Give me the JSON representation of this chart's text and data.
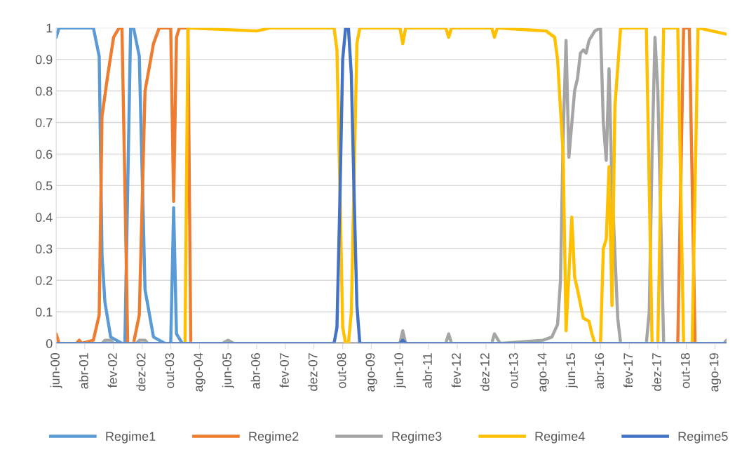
{
  "chart_data": {
    "type": "line",
    "xlim": [
      "2000-06",
      "2019-12"
    ],
    "ylim": [
      0,
      1
    ],
    "yticks": [
      {
        "value": 0,
        "label": "0"
      },
      {
        "value": 0.1,
        "label": "0.1"
      },
      {
        "value": 0.2,
        "label": "0.2"
      },
      {
        "value": 0.3,
        "label": "0.3"
      },
      {
        "value": 0.4,
        "label": "0.4"
      },
      {
        "value": 0.5,
        "label": "0.5"
      },
      {
        "value": 0.6,
        "label": "0.6"
      },
      {
        "value": 0.7,
        "label": "0.7"
      },
      {
        "value": 0.8,
        "label": "0.8"
      },
      {
        "value": 0.9,
        "label": "0.9"
      },
      {
        "value": 1,
        "label": "1"
      }
    ],
    "xticks": [
      {
        "value": "2000-06",
        "label": "jun-00"
      },
      {
        "value": "2001-04",
        "label": "abr-01"
      },
      {
        "value": "2002-02",
        "label": "fev-02"
      },
      {
        "value": "2002-12",
        "label": "dez-02"
      },
      {
        "value": "2003-10",
        "label": "out-03"
      },
      {
        "value": "2004-08",
        "label": "ago-04"
      },
      {
        "value": "2005-06",
        "label": "jun-05"
      },
      {
        "value": "2006-04",
        "label": "abr-06"
      },
      {
        "value": "2007-02",
        "label": "fev-07"
      },
      {
        "value": "2007-12",
        "label": "dez-07"
      },
      {
        "value": "2008-10",
        "label": "out-08"
      },
      {
        "value": "2009-08",
        "label": "ago-09"
      },
      {
        "value": "2010-06",
        "label": "jun-10"
      },
      {
        "value": "2011-04",
        "label": "abr-11"
      },
      {
        "value": "2012-02",
        "label": "fev-12"
      },
      {
        "value": "2012-12",
        "label": "dez-12"
      },
      {
        "value": "2013-10",
        "label": "out-13"
      },
      {
        "value": "2014-08",
        "label": "ago-14"
      },
      {
        "value": "2015-06",
        "label": "jun-15"
      },
      {
        "value": "2016-04",
        "label": "abr-16"
      },
      {
        "value": "2017-02",
        "label": "fev-17"
      },
      {
        "value": "2017-12",
        "label": "dez-17"
      },
      {
        "value": "2018-10",
        "label": "out-18"
      },
      {
        "value": "2019-08",
        "label": "ago-19"
      }
    ],
    "grid": "y",
    "legend": "bottom",
    "marker": "none",
    "line_style": "solid",
    "series": [
      {
        "name": "Regime1",
        "color": "#5b9bd5",
        "x": [
          "2000-06",
          "2000-07",
          "2001-07",
          "2001-09",
          "2001-10",
          "2001-11",
          "2002-01",
          "2002-05",
          "2002-06",
          "2002-08",
          "2002-09",
          "2002-11",
          "2003-01",
          "2003-04",
          "2003-08",
          "2003-10",
          "2003-11",
          "2003-12",
          "2004-02",
          "2019-12"
        ],
        "values": [
          0.97,
          1,
          1,
          0.91,
          0.28,
          0.13,
          0.02,
          0,
          0,
          1,
          1,
          0.91,
          0.17,
          0.02,
          0,
          0,
          0.43,
          0.03,
          0,
          0
        ]
      },
      {
        "name": "Regime2",
        "color": "#ed7d31",
        "x": [
          "2000-06",
          "2000-07",
          "2001-01",
          "2001-02",
          "2001-03",
          "2001-07",
          "2001-09",
          "2001-10",
          "2001-12",
          "2002-02",
          "2002-04",
          "2002-05",
          "2002-06",
          "2002-07",
          "2002-09",
          "2002-11",
          "2003-01",
          "2003-04",
          "2003-06",
          "2003-10",
          "2003-11",
          "2003-12",
          "2004-01",
          "2004-04",
          "2004-05",
          "2018-07",
          "2018-09",
          "2018-11",
          "2019-01",
          "2019-12"
        ],
        "values": [
          0.03,
          0,
          0,
          0.01,
          0,
          0.01,
          0.09,
          0.72,
          0.85,
          0.97,
          1,
          1,
          0.5,
          0,
          0,
          0.09,
          0.8,
          0.95,
          1,
          1,
          0.45,
          0.97,
          1,
          1,
          0,
          0,
          1,
          1,
          0,
          0
        ]
      },
      {
        "name": "Regime3",
        "color": "#a5a5a5",
        "x": [
          "2000-06",
          "2001-10",
          "2001-11",
          "2002-01",
          "2002-02",
          "2002-10",
          "2002-11",
          "2003-01",
          "2003-02",
          "2005-04",
          "2005-06",
          "2005-08",
          "2010-06",
          "2010-07",
          "2010-08",
          "2011-10",
          "2011-11",
          "2011-12",
          "2013-02",
          "2013-03",
          "2013-05",
          "2014-08",
          "2014-11",
          "2015-01",
          "2015-02",
          "2015-03",
          "2015-04",
          "2015-05",
          "2015-07",
          "2015-08",
          "2015-09",
          "2015-10",
          "2015-11",
          "2015-12",
          "2016-02",
          "2016-04",
          "2016-05",
          "2016-06",
          "2016-07",
          "2016-08",
          "2016-10",
          "2016-11",
          "2017-08",
          "2017-09",
          "2017-10",
          "2017-11",
          "2017-12",
          "2018-02",
          "2019-11",
          "2019-12"
        ],
        "values": [
          0,
          0,
          0.01,
          0.01,
          0,
          0,
          0.01,
          0.01,
          0,
          0,
          0.01,
          0,
          0,
          0.04,
          0,
          0,
          0.03,
          0,
          0,
          0.03,
          0,
          0.01,
          0.02,
          0.06,
          0.2,
          0.65,
          0.96,
          0.59,
          0.8,
          0.84,
          0.92,
          0.93,
          0.92,
          0.96,
          0.99,
          1,
          0.7,
          0.58,
          0.87,
          0.5,
          0.08,
          0,
          0,
          0.1,
          0.6,
          0.97,
          0.8,
          0,
          0,
          0.01
        ]
      },
      {
        "name": "Regime4",
        "color": "#ffc000",
        "x": [
          "2000-06",
          "2004-03",
          "2004-04",
          "2006-04",
          "2006-09",
          "2008-07",
          "2008-08",
          "2008-09",
          "2008-10",
          "2008-11",
          "2008-12",
          "2009-01",
          "2009-02",
          "2009-03",
          "2009-04",
          "2010-06",
          "2010-07",
          "2010-08",
          "2011-10",
          "2011-11",
          "2011-12",
          "2013-02",
          "2013-03",
          "2013-04",
          "2014-09",
          "2014-12",
          "2015-01",
          "2015-03",
          "2015-04",
          "2015-06",
          "2015-07",
          "2015-08",
          "2015-10",
          "2015-12",
          "2016-01",
          "2016-02",
          "2016-04",
          "2016-05",
          "2016-06",
          "2016-07",
          "2016-08",
          "2016-09",
          "2016-11",
          "2017-08",
          "2017-10",
          "2017-12",
          "2018-02",
          "2018-07",
          "2018-09",
          "2018-12",
          "2019-01",
          "2019-02",
          "2019-12"
        ],
        "values": [
          0,
          0,
          1,
          0.99,
          1,
          1,
          0.93,
          0.5,
          0.05,
          0,
          0,
          0.1,
          0.55,
          0.95,
          1,
          1,
          0.95,
          1,
          1,
          0.97,
          1,
          1,
          0.97,
          1,
          0.99,
          0.97,
          0.9,
          0.6,
          0.04,
          0.4,
          0.21,
          0.17,
          0.08,
          0.07,
          0.03,
          0,
          0,
          0.3,
          0.33,
          0.56,
          0.12,
          0.75,
          1,
          1,
          0,
          0,
          1,
          1,
          0,
          0,
          0.5,
          1,
          0.98
        ]
      },
      {
        "name": "Regime5",
        "color": "#4472c4",
        "x": [
          "2000-06",
          "2008-07",
          "2008-08",
          "2008-09",
          "2008-10",
          "2008-11",
          "2008-12",
          "2009-01",
          "2009-02",
          "2009-03",
          "2009-04",
          "2010-06",
          "2010-07",
          "2010-08",
          "2019-12"
        ],
        "values": [
          0,
          0,
          0.05,
          0.45,
          0.9,
          1,
          1,
          0.85,
          0.45,
          0.12,
          0,
          0,
          0.01,
          0,
          0
        ]
      }
    ]
  }
}
